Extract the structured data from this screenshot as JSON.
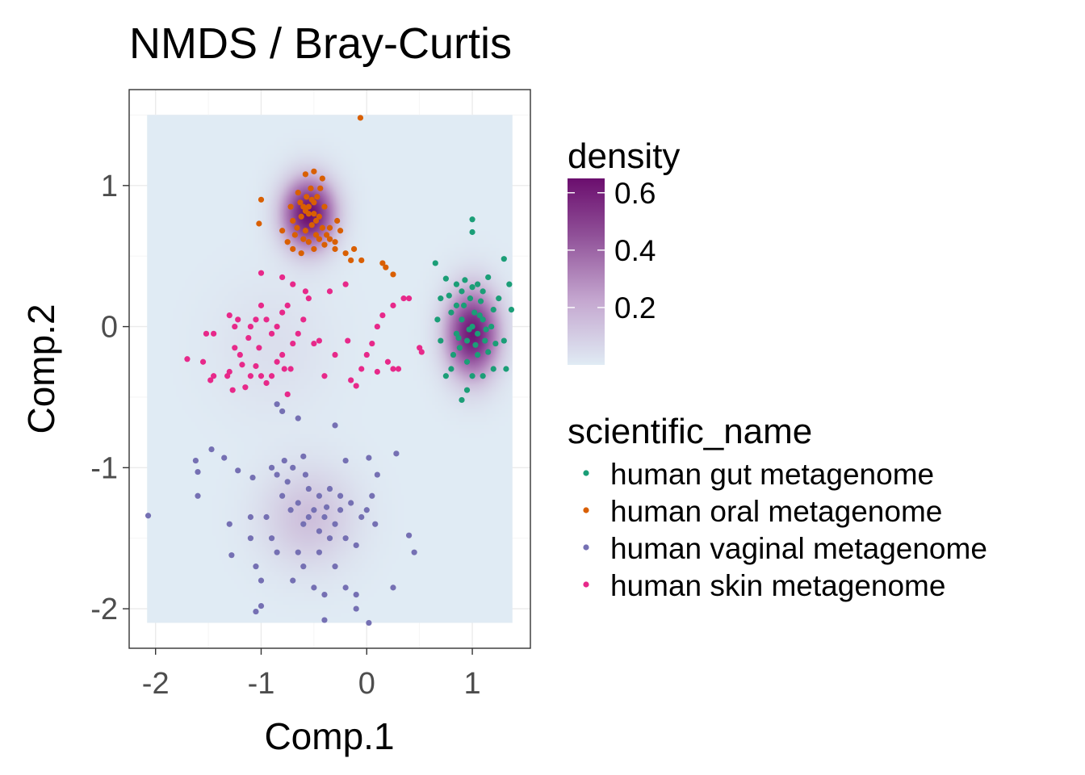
{
  "chart_data": {
    "type": "scatter",
    "title": "NMDS / Bray-Curtis",
    "xlabel": "Comp.1",
    "ylabel": "Comp.2",
    "xlim": [
      -2.25,
      1.55
    ],
    "ylim": [
      -2.28,
      1.68
    ],
    "x_ticks": [
      {
        "value": -2,
        "label": "-2"
      },
      {
        "value": -1,
        "label": "-1"
      },
      {
        "value": 0,
        "label": "0"
      },
      {
        "value": 1,
        "label": "1"
      }
    ],
    "y_ticks": [
      {
        "value": 1,
        "label": "1"
      },
      {
        "value": 0,
        "label": "0"
      },
      {
        "value": -1,
        "label": "-1"
      },
      {
        "value": -2,
        "label": "-2"
      }
    ],
    "grid": true,
    "background_raster": {
      "x_range": [
        -2.08,
        1.38
      ],
      "y_range": [
        -2.1,
        1.5
      ],
      "kernels": [
        {
          "x": -0.55,
          "y": 0.8,
          "sx": 0.17,
          "sy": 0.17,
          "weight": 0.65
        },
        {
          "x": 1.0,
          "y": -0.05,
          "sx": 0.17,
          "sy": 0.21,
          "weight": 0.62
        },
        {
          "x": -0.55,
          "y": -1.35,
          "sx": 0.3,
          "sy": 0.24,
          "weight": 0.14
        },
        {
          "x": -0.9,
          "y": -0.15,
          "sx": 0.38,
          "sy": 0.32,
          "weight": 0.04
        }
      ],
      "color_low": "#e0ebf4",
      "color_high": "#6b0e6e"
    },
    "density_legend": {
      "title": "density",
      "ticks": [
        {
          "value": 0.6,
          "label": "0.6"
        },
        {
          "value": 0.4,
          "label": "0.4"
        },
        {
          "value": 0.2,
          "label": "0.2"
        }
      ],
      "range": [
        0.0,
        0.65
      ]
    },
    "legend": {
      "title": "scientific_name",
      "position": "right"
    },
    "series": [
      {
        "name": "human gut metagenome",
        "color": "#1b9e77",
        "points": [
          [
            0.65,
            0.45
          ],
          [
            1.0,
            0.76
          ],
          [
            1.0,
            0.67
          ],
          [
            1.3,
            0.48
          ],
          [
            0.75,
            0.34
          ],
          [
            0.7,
            0.2
          ],
          [
            0.67,
            0.05
          ],
          [
            0.7,
            -0.1
          ],
          [
            1.37,
            0.12
          ],
          [
            1.35,
            0.3
          ],
          [
            1.3,
            -0.1
          ],
          [
            1.32,
            -0.3
          ],
          [
            0.9,
            -0.52
          ],
          [
            0.95,
            -0.45
          ],
          [
            0.75,
            -0.35
          ],
          [
            1.0,
            -0.35
          ],
          [
            1.1,
            -0.35
          ],
          [
            1.2,
            -0.3
          ],
          [
            0.85,
            0.3
          ],
          [
            1.15,
            0.35
          ],
          [
            0.8,
            0.1
          ],
          [
            0.85,
            -0.05
          ],
          [
            0.9,
            0.05
          ],
          [
            0.95,
            -0.1
          ],
          [
            1.0,
            0.0
          ],
          [
            1.05,
            -0.05
          ],
          [
            1.1,
            0.05
          ],
          [
            0.92,
            0.15
          ],
          [
            0.98,
            0.2
          ],
          [
            1.08,
            0.18
          ],
          [
            1.12,
            -0.1
          ],
          [
            1.05,
            -0.2
          ],
          [
            0.95,
            -0.25
          ],
          [
            0.88,
            -0.15
          ],
          [
            1.18,
            0.0
          ],
          [
            1.2,
            0.12
          ],
          [
            0.78,
            0.22
          ],
          [
            0.82,
            -0.2
          ],
          [
            1.02,
            0.1
          ],
          [
            0.97,
            -0.02
          ],
          [
            1.07,
            0.08
          ],
          [
            1.13,
            -0.02
          ],
          [
            0.9,
            0.25
          ],
          [
            1.0,
            0.28
          ],
          [
            1.1,
            0.25
          ],
          [
            0.87,
            -0.08
          ],
          [
            1.03,
            -0.13
          ],
          [
            1.15,
            -0.18
          ],
          [
            0.8,
            -0.3
          ],
          [
            1.25,
            0.2
          ],
          [
            1.05,
            0.3
          ],
          [
            0.93,
            0.33
          ],
          [
            1.22,
            -0.12
          ],
          [
            0.85,
            0.15
          ]
        ]
      },
      {
        "name": "human oral metagenome",
        "color": "#d95f02",
        "points": [
          [
            -0.06,
            1.48
          ],
          [
            -1.0,
            0.9
          ],
          [
            -1.02,
            0.73
          ],
          [
            -0.58,
            1.08
          ],
          [
            -0.5,
            1.1
          ],
          [
            -0.42,
            1.05
          ],
          [
            -0.75,
            0.6
          ],
          [
            -0.8,
            0.68
          ],
          [
            -0.7,
            0.55
          ],
          [
            -0.62,
            0.52
          ],
          [
            -0.5,
            0.55
          ],
          [
            -0.4,
            0.58
          ],
          [
            -0.3,
            0.6
          ],
          [
            -0.2,
            0.52
          ],
          [
            -0.15,
            0.47
          ],
          [
            -0.12,
            0.55
          ],
          [
            0.15,
            0.45
          ],
          [
            0.18,
            0.42
          ],
          [
            0.25,
            0.37
          ],
          [
            -0.05,
            0.47
          ],
          [
            -0.35,
            0.7
          ],
          [
            -0.28,
            0.75
          ],
          [
            -0.7,
            0.75
          ],
          [
            -0.72,
            0.85
          ],
          [
            -0.65,
            0.95
          ],
          [
            -0.6,
            0.85
          ],
          [
            -0.55,
            0.8
          ],
          [
            -0.5,
            0.88
          ],
          [
            -0.45,
            0.78
          ],
          [
            -0.52,
            0.72
          ],
          [
            -0.58,
            0.68
          ],
          [
            -0.48,
            0.65
          ],
          [
            -0.42,
            0.7
          ],
          [
            -0.62,
            0.78
          ],
          [
            -0.57,
            0.92
          ],
          [
            -0.53,
            0.98
          ],
          [
            -0.47,
            0.92
          ],
          [
            -0.4,
            0.85
          ],
          [
            -0.66,
            0.7
          ],
          [
            -0.6,
            0.62
          ],
          [
            -0.55,
            0.6
          ],
          [
            -0.45,
            0.62
          ],
          [
            -0.38,
            0.65
          ],
          [
            -0.55,
            0.85
          ],
          [
            -0.5,
            0.8
          ],
          [
            -0.52,
            0.9
          ],
          [
            -0.58,
            0.82
          ],
          [
            -0.48,
            0.75
          ],
          [
            -0.63,
            0.88
          ],
          [
            -0.44,
            0.98
          ],
          [
            -0.35,
            0.62
          ],
          [
            -0.68,
            0.65
          ],
          [
            -0.25,
            0.68
          ],
          [
            -0.3,
            0.55
          ]
        ]
      },
      {
        "name": "human vaginal metagenome",
        "color": "#7570b3",
        "points": [
          [
            -2.07,
            -1.34
          ],
          [
            -1.62,
            -0.95
          ],
          [
            -1.6,
            -1.03
          ],
          [
            -1.47,
            -0.87
          ],
          [
            -1.35,
            -0.93
          ],
          [
            -1.22,
            -1.02
          ],
          [
            -1.08,
            -1.07
          ],
          [
            -0.9,
            -1.0
          ],
          [
            -0.85,
            -1.05
          ],
          [
            -0.78,
            -0.95
          ],
          [
            -0.7,
            -1.0
          ],
          [
            -0.6,
            -0.92
          ],
          [
            -0.2,
            -0.95
          ],
          [
            0.02,
            -0.93
          ],
          [
            0.28,
            -0.9
          ],
          [
            0.1,
            -1.05
          ],
          [
            -1.3,
            -1.4
          ],
          [
            -1.28,
            -1.62
          ],
          [
            -1.1,
            -1.5
          ],
          [
            -1.05,
            -1.7
          ],
          [
            -1.0,
            -1.8
          ],
          [
            -1.05,
            -2.02
          ],
          [
            -1.0,
            -1.98
          ],
          [
            -0.4,
            -2.08
          ],
          [
            0.02,
            -2.1
          ],
          [
            -0.7,
            -1.8
          ],
          [
            -0.5,
            -1.85
          ],
          [
            -0.4,
            -1.9
          ],
          [
            -0.3,
            -1.7
          ],
          [
            -0.2,
            -1.85
          ],
          [
            -0.1,
            -1.9
          ],
          [
            -0.1,
            -2.0
          ],
          [
            0.25,
            -1.85
          ],
          [
            0.4,
            -1.48
          ],
          [
            0.45,
            -1.6
          ],
          [
            -1.6,
            -1.2
          ],
          [
            -1.1,
            -1.35
          ],
          [
            -0.8,
            -1.2
          ],
          [
            -0.72,
            -1.3
          ],
          [
            -0.65,
            -1.25
          ],
          [
            -0.6,
            -1.4
          ],
          [
            -0.55,
            -1.35
          ],
          [
            -0.5,
            -1.3
          ],
          [
            -0.45,
            -1.45
          ],
          [
            -0.4,
            -1.35
          ],
          [
            -0.35,
            -1.5
          ],
          [
            -0.3,
            -1.4
          ],
          [
            -0.25,
            -1.3
          ],
          [
            -0.2,
            -1.5
          ],
          [
            -0.15,
            -1.25
          ],
          [
            -0.1,
            -1.55
          ],
          [
            -0.05,
            -1.35
          ],
          [
            0.0,
            -1.3
          ],
          [
            -0.75,
            -1.1
          ],
          [
            -0.55,
            -1.15
          ],
          [
            -0.45,
            -1.2
          ],
          [
            -0.35,
            -1.15
          ],
          [
            -0.25,
            -1.2
          ],
          [
            -0.9,
            -1.5
          ],
          [
            -0.85,
            -1.6
          ],
          [
            -0.65,
            -1.6
          ],
          [
            -0.6,
            -1.7
          ],
          [
            -0.45,
            -1.6
          ],
          [
            0.05,
            -1.2
          ],
          [
            0.08,
            -1.4
          ],
          [
            -0.95,
            -1.35
          ],
          [
            -0.8,
            -0.6
          ],
          [
            -0.65,
            -0.65
          ],
          [
            -0.85,
            -0.55
          ],
          [
            -0.3,
            -0.7
          ],
          [
            -0.58,
            -1.05
          ],
          [
            -0.38,
            -1.28
          ]
        ]
      },
      {
        "name": "human skin metagenome",
        "color": "#e7298a",
        "points": [
          [
            -1.7,
            -0.23
          ],
          [
            -1.55,
            -0.25
          ],
          [
            -1.52,
            -0.05
          ],
          [
            -1.45,
            -0.05
          ],
          [
            -1.48,
            -0.38
          ],
          [
            -1.45,
            -0.35
          ],
          [
            -1.32,
            -0.35
          ],
          [
            -1.3,
            -0.32
          ],
          [
            -1.27,
            -0.45
          ],
          [
            -1.25,
            -0.15
          ],
          [
            -1.2,
            -0.2
          ],
          [
            -1.18,
            -0.27
          ],
          [
            -1.15,
            -0.43
          ],
          [
            -1.1,
            -0.35
          ],
          [
            -1.05,
            -0.28
          ],
          [
            -1.02,
            -0.15
          ],
          [
            -1.0,
            -0.35
          ],
          [
            -0.95,
            -0.4
          ],
          [
            -0.9,
            -0.35
          ],
          [
            -0.85,
            -0.25
          ],
          [
            -0.8,
            -0.2
          ],
          [
            -0.78,
            -0.3
          ],
          [
            -0.75,
            -0.48
          ],
          [
            -0.72,
            -0.3
          ],
          [
            -0.7,
            -0.12
          ],
          [
            -0.65,
            -0.05
          ],
          [
            -0.6,
            0.05
          ],
          [
            -0.55,
            0.2
          ],
          [
            -0.58,
            0.25
          ],
          [
            -0.7,
            0.3
          ],
          [
            -0.75,
            0.15
          ],
          [
            -0.8,
            0.1
          ],
          [
            -0.85,
            0.0
          ],
          [
            -0.9,
            -0.05
          ],
          [
            -0.95,
            0.05
          ],
          [
            -1.0,
            0.15
          ],
          [
            -1.05,
            0.05
          ],
          [
            -1.1,
            0.0
          ],
          [
            -1.12,
            -0.08
          ],
          [
            -1.22,
            0.05
          ],
          [
            -1.25,
            0.0
          ],
          [
            -1.3,
            0.08
          ],
          [
            -0.5,
            -0.12
          ],
          [
            -0.4,
            -0.35
          ],
          [
            -0.45,
            -0.1
          ],
          [
            -0.35,
            0.25
          ],
          [
            -0.3,
            -0.2
          ],
          [
            -0.2,
            0.3
          ],
          [
            -0.18,
            -0.1
          ],
          [
            -0.15,
            -0.38
          ],
          [
            -0.1,
            -0.42
          ],
          [
            -0.05,
            -0.3
          ],
          [
            0.0,
            -0.2
          ],
          [
            0.05,
            -0.12
          ],
          [
            0.1,
            0.0
          ],
          [
            0.15,
            0.08
          ],
          [
            0.1,
            -0.32
          ],
          [
            0.2,
            -0.25
          ],
          [
            0.25,
            -0.3
          ],
          [
            0.3,
            -0.3
          ],
          [
            0.35,
            0.2
          ],
          [
            0.4,
            0.2
          ],
          [
            0.25,
            0.15
          ],
          [
            0.5,
            -0.15
          ],
          [
            0.52,
            -0.18
          ],
          [
            -0.8,
            0.35
          ],
          [
            -1.0,
            0.38
          ]
        ]
      }
    ]
  }
}
